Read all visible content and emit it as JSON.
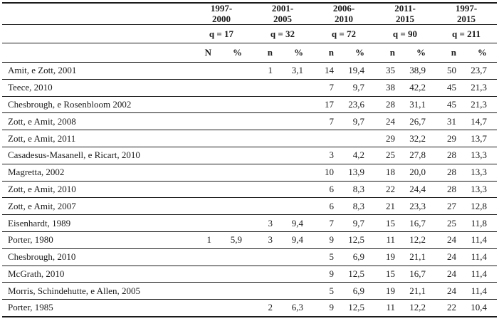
{
  "table": {
    "colors": {
      "text": "#1b1b1b",
      "line": "#1b1b1b",
      "background": "#ffffff"
    },
    "groups": [
      {
        "period": "1997-\n2000",
        "q": "q = 17",
        "unit": "N",
        "pct": "%"
      },
      {
        "period": "2001-\n2005",
        "q": "q = 32",
        "unit": "n",
        "pct": "%"
      },
      {
        "period": "2006-\n2010",
        "q": "q = 72",
        "unit": "n",
        "pct": "%"
      },
      {
        "period": "2011-\n2015",
        "q": "q = 90",
        "unit": "n",
        "pct": "%"
      },
      {
        "period": "1997-\n2015",
        "q": "q = 211",
        "unit": "n",
        "pct": "%"
      }
    ],
    "rows": [
      {
        "name": "Amit, e Zott, 2001",
        "values": [
          [
            "",
            ""
          ],
          [
            "1",
            "3,1"
          ],
          [
            "14",
            "19,4"
          ],
          [
            "35",
            "38,9"
          ],
          [
            "50",
            "23,7"
          ]
        ]
      },
      {
        "name": "Teece, 2010",
        "values": [
          [
            "",
            ""
          ],
          [
            "",
            ""
          ],
          [
            "7",
            "9,7"
          ],
          [
            "38",
            "42,2"
          ],
          [
            "45",
            "21,3"
          ]
        ]
      },
      {
        "name": "Chesbrough, e Rosenbloom 2002",
        "values": [
          [
            "",
            ""
          ],
          [
            "",
            ""
          ],
          [
            "17",
            "23,6"
          ],
          [
            "28",
            "31,1"
          ],
          [
            "45",
            "21,3"
          ]
        ]
      },
      {
        "name": "Zott, e Amit, 2008",
        "values": [
          [
            "",
            ""
          ],
          [
            "",
            ""
          ],
          [
            "7",
            "9,7"
          ],
          [
            "24",
            "26,7"
          ],
          [
            "31",
            "14,7"
          ]
        ]
      },
      {
        "name": "Zott, e Amit, 2011",
        "values": [
          [
            "",
            ""
          ],
          [
            "",
            ""
          ],
          [
            "",
            ""
          ],
          [
            "29",
            "32,2"
          ],
          [
            "29",
            "13,7"
          ]
        ]
      },
      {
        "name": "Casadesus-Masanell, e Ricart, 2010",
        "values": [
          [
            "",
            ""
          ],
          [
            "",
            ""
          ],
          [
            "3",
            "4,2"
          ],
          [
            "25",
            "27,8"
          ],
          [
            "28",
            "13,3"
          ]
        ]
      },
      {
        "name": "Magretta, 2002",
        "values": [
          [
            "",
            ""
          ],
          [
            "",
            ""
          ],
          [
            "10",
            "13,9"
          ],
          [
            "18",
            "20,0"
          ],
          [
            "28",
            "13,3"
          ]
        ]
      },
      {
        "name": "Zott, e Amit, 2010",
        "values": [
          [
            "",
            ""
          ],
          [
            "",
            ""
          ],
          [
            "6",
            "8,3"
          ],
          [
            "22",
            "24,4"
          ],
          [
            "28",
            "13,3"
          ]
        ]
      },
      {
        "name": "Zott, e Amit, 2007",
        "values": [
          [
            "",
            ""
          ],
          [
            "",
            ""
          ],
          [
            "6",
            "8,3"
          ],
          [
            "21",
            "23,3"
          ],
          [
            "27",
            "12,8"
          ]
        ]
      },
      {
        "name": "Eisenhardt, 1989",
        "values": [
          [
            "",
            ""
          ],
          [
            "3",
            "9,4"
          ],
          [
            "7",
            "9,7"
          ],
          [
            "15",
            "16,7"
          ],
          [
            "25",
            "11,8"
          ]
        ]
      },
      {
        "name": "Porter, 1980",
        "values": [
          [
            "1",
            "5,9"
          ],
          [
            "3",
            "9,4"
          ],
          [
            "9",
            "12,5"
          ],
          [
            "11",
            "12,2"
          ],
          [
            "24",
            "11,4"
          ]
        ]
      },
      {
        "name": "Chesbrough, 2010",
        "values": [
          [
            "",
            ""
          ],
          [
            "",
            ""
          ],
          [
            "5",
            "6,9"
          ],
          [
            "19",
            "21,1"
          ],
          [
            "24",
            "11,4"
          ]
        ]
      },
      {
        "name": "McGrath, 2010",
        "values": [
          [
            "",
            ""
          ],
          [
            "",
            ""
          ],
          [
            "9",
            "12,5"
          ],
          [
            "15",
            "16,7"
          ],
          [
            "24",
            "11,4"
          ]
        ]
      },
      {
        "name": "Morris, Schindehutte, e Allen, 2005",
        "values": [
          [
            "",
            ""
          ],
          [
            "",
            ""
          ],
          [
            "5",
            "6,9"
          ],
          [
            "19",
            "21,1"
          ],
          [
            "24",
            "11,4"
          ]
        ]
      },
      {
        "name": "Porter, 1985",
        "values": [
          [
            "",
            ""
          ],
          [
            "2",
            "6,3"
          ],
          [
            "9",
            "12,5"
          ],
          [
            "11",
            "12,2"
          ],
          [
            "22",
            "10,4"
          ]
        ]
      }
    ]
  }
}
